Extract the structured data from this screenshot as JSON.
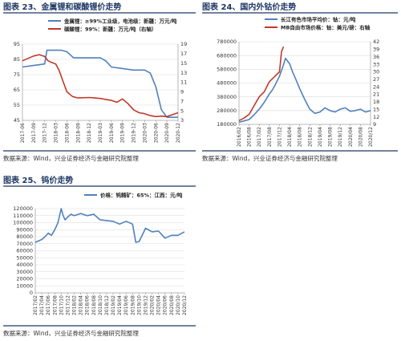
{
  "figures": [
    {
      "title": "图表 23、金属锂和碳酸锂价走势",
      "source": "数据来源：Wind，兴业证券经济与金融研究院整理",
      "chart_data": {
        "type": "line",
        "x_labels": [
          "2017-06",
          "2017-09",
          "2017-12",
          "2018-03",
          "2018-06",
          "2018-09",
          "2018-12",
          "2019-03",
          "2019-06",
          "2019-09",
          "2019-12",
          "2020-03",
          "2020-06",
          "2020-09",
          "2020-12"
        ],
        "ylim": [
          45,
          95
        ],
        "yticks": [
          45,
          55,
          65,
          75,
          85,
          95
        ],
        "y2lim": [
          3,
          19
        ],
        "y2ticks": [
          3,
          5,
          7,
          9,
          11,
          13,
          15,
          17,
          19
        ],
        "legend_position": "top",
        "series": [
          {
            "name": "金属锂：≥99%工业级，电池级：新疆：万元/吨",
            "axis": "left",
            "color": "#4f81bd",
            "x": [
              0,
              1.0,
              2.0,
              2.2,
              3.0,
              3.5,
              4.0,
              4.3,
              4.6,
              5,
              6,
              7,
              7.5,
              8,
              9,
              10,
              11,
              11.5,
              12,
              12.5,
              13,
              14
            ],
            "values": [
              80,
              81,
              82,
              91,
              91,
              91,
              90,
              88,
              86,
              86,
              86,
              86,
              84,
              80,
              79,
              78,
              78,
              76,
              67,
              52,
              47,
              47
            ]
          },
          {
            "name": "碳酸锂：99%：新疆：万元/吨（右轴）",
            "axis": "right",
            "color": "#c0392b",
            "x": [
              0,
              0.5,
              1,
              1.5,
              2.0,
              2.3,
              2.6,
              3.0,
              3.3,
              3.6,
              4.0,
              4.5,
              5,
              6,
              6.5,
              7,
              7.5,
              8,
              8.5,
              9,
              9.5,
              10,
              10.5,
              11,
              11.5,
              12,
              12.5,
              13,
              13.5,
              14
            ],
            "values": [
              15.5,
              16.0,
              16.5,
              16.8,
              16.4,
              15.5,
              15.2,
              14.8,
              13.5,
              11.5,
              9.0,
              8.0,
              7.7,
              7.8,
              7.7,
              7.6,
              7.4,
              7.2,
              6.8,
              7.5,
              6.5,
              5.2,
              4.6,
              4.4,
              4.0,
              3.8,
              3.9,
              3.8,
              4.2,
              4.6
            ]
          }
        ]
      }
    },
    {
      "title": "图表 24、国内外钴价走势",
      "source": "数据来源：Wind，兴业证券经济与金融研究院整理",
      "chart_data": {
        "type": "line",
        "x_labels": [
          "2016/02",
          "2016/08",
          "2017/02",
          "2017/08",
          "2017/12",
          "2018/04",
          "2018/08",
          "2018/12",
          "2019/04",
          "2019/08",
          "2019/12",
          "2020/04",
          "2020/08",
          "2020/12"
        ],
        "ylim": [
          180000,
          780000
        ],
        "yticks": [
          180000,
          280000,
          380000,
          480000,
          580000,
          680000,
          780000
        ],
        "y2lim": [
          9,
          42
        ],
        "y2ticks": [
          9,
          12,
          15,
          18,
          21,
          24,
          27,
          30,
          33,
          36,
          39,
          42
        ],
        "legend_position": "top",
        "series": [
          {
            "name": "长江有色市场平均价：钴：元/吨",
            "axis": "left",
            "color": "#4f81bd",
            "x": [
              0,
              0.5,
              1,
              1.5,
              2,
              2.5,
              3,
              3.3,
              3.6,
              4,
              4.3,
              4.6,
              5,
              5.3,
              5.6,
              6,
              6.5,
              7,
              7.5,
              8,
              8.5,
              9,
              9.5,
              10,
              10.5,
              11,
              11.5,
              12,
              12.5,
              13
            ],
            "values": [
              195000,
              205000,
              215000,
              250000,
              290000,
              340000,
              400000,
              430000,
              470000,
              530000,
              590000,
              660000,
              620000,
              560000,
              510000,
              440000,
              360000,
              290000,
              260000,
              270000,
              300000,
              280000,
              270000,
              290000,
              300000,
              275000,
              280000,
              290000,
              270000,
              280000
            ]
          },
          {
            "name": "MB自由市场价格：钴：美元/磅：右轴",
            "axis": "right",
            "color": "#c0392b",
            "x": [
              0,
              0.5,
              1,
              1.5,
              2,
              2.5,
              3,
              3.5,
              4,
              4.2,
              4.4
            ],
            "values": [
              10.5,
              11.5,
              13,
              16.5,
              20,
              22,
              26,
              28,
              30,
              38,
              40
            ]
          }
        ]
      }
    },
    {
      "title": "图表 25、钨价走势",
      "source": "数据来源：Wind，兴业证券经济与金融研究院整理",
      "chart_data": {
        "type": "line",
        "x_labels": [
          "2017/02",
          "2017/04",
          "2017/06",
          "2017/08",
          "2017/10",
          "2017/12",
          "2018/02",
          "2018/04",
          "2018/06",
          "2018/08",
          "2018/10",
          "2018/12",
          "2019/02",
          "2019/04",
          "2019/06",
          "2019/08",
          "2019/10",
          "2019/12",
          "2020/02",
          "2020/04",
          "2020/06",
          "2020/08",
          "2020/10",
          "2020/12"
        ],
        "ylim": [
          0,
          120000
        ],
        "yticks": [
          0,
          10000,
          20000,
          30000,
          40000,
          50000,
          60000,
          70000,
          80000,
          90000,
          100000,
          110000,
          120000
        ],
        "legend_position": "top",
        "series": [
          {
            "name": "价格：钨精矿：65%：江西：元/吨",
            "axis": "left",
            "color": "#4f81bd",
            "x": [
              0,
              1,
              1.5,
              2,
              2.5,
              3,
              3.5,
              4,
              4.3,
              4.6,
              5,
              5.5,
              6,
              7,
              8,
              9,
              10,
              11,
              12,
              13,
              14,
              15,
              15.5,
              16,
              17,
              18,
              19,
              20,
              21,
              22,
              23
            ],
            "values": [
              72000,
              76000,
              80000,
              85000,
              82000,
              90000,
              100000,
              120000,
              110000,
              104000,
              108000,
              112000,
              110000,
              113000,
              110000,
              112000,
              104000,
              103000,
              102000,
              98000,
              102000,
              98000,
              72000,
              73000,
              92000,
              87000,
              88000,
              78000,
              82000,
              82000,
              87000
            ]
          }
        ]
      }
    }
  ]
}
